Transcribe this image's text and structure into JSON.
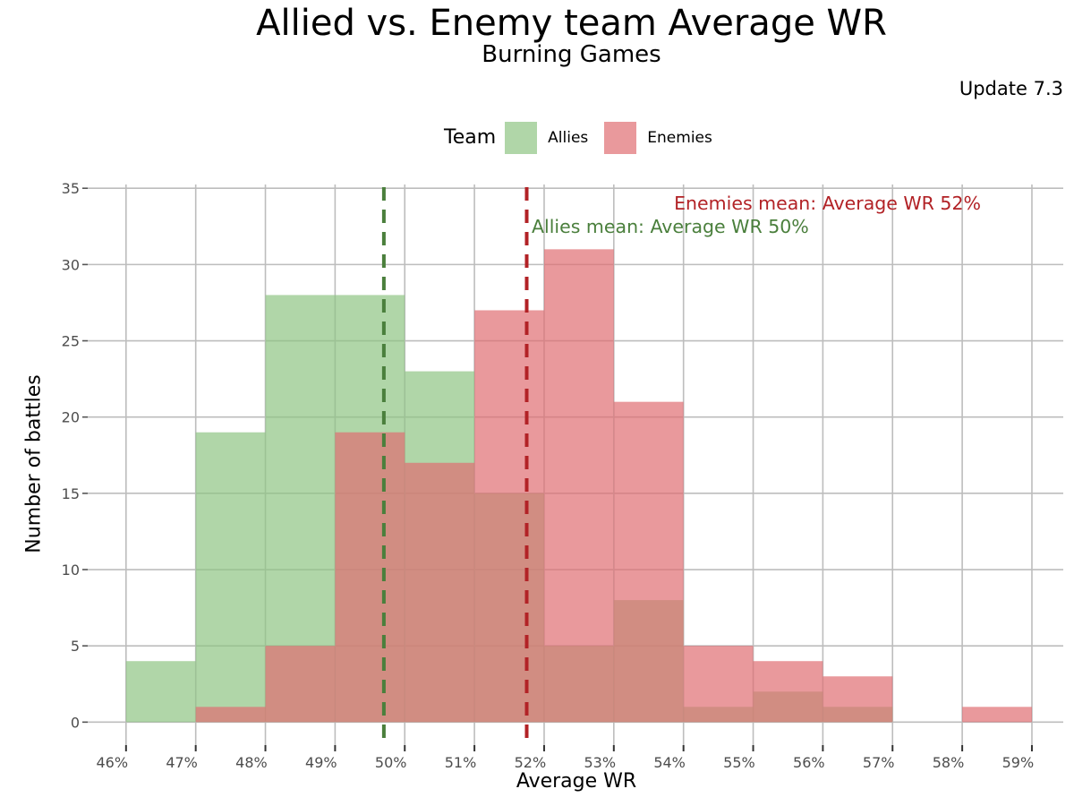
{
  "title": "Allied vs. Enemy team Average WR",
  "subtitle": "Burning Games",
  "caption": "Update 7.3",
  "legend": {
    "title": "Team",
    "items": [
      {
        "label": "Allies",
        "color": "#8fc583"
      },
      {
        "label": "Enemies",
        "color": "#df6e72"
      }
    ]
  },
  "chart_data": {
    "type": "bar",
    "subtype": "overlapping-histogram",
    "title": "Allied vs. Enemy team Average WR",
    "subtitle": "Burning Games",
    "xlabel": "Average WR",
    "ylabel": "Number of battles",
    "xlim": [
      45.65,
      59.65
    ],
    "ylim": [
      -1.8,
      35.6
    ],
    "x_ticks": [
      "46%",
      "47%",
      "48%",
      "49%",
      "50%",
      "51%",
      "52%",
      "53%",
      "54%",
      "55%",
      "56%",
      "57%",
      "58%",
      "59%"
    ],
    "y_ticks": [
      0,
      5,
      10,
      15,
      20,
      25,
      30,
      35
    ],
    "bin_edges": [
      46.2,
      47.2,
      48.2,
      49.2,
      50.2,
      51.2,
      52.2,
      53.2,
      54.2,
      55.2,
      56.2,
      57.2,
      58.2,
      59.2
    ],
    "series": [
      {
        "name": "Allies",
        "color": "#8fc583",
        "values": [
          4,
          19,
          28,
          28,
          23,
          15,
          5,
          8,
          1,
          2,
          1,
          0,
          0
        ]
      },
      {
        "name": "Enemies",
        "color": "#df6e72",
        "values": [
          0,
          1,
          5,
          19,
          17,
          27,
          31,
          21,
          5,
          4,
          3,
          0,
          1
        ]
      }
    ],
    "mean_lines": [
      {
        "series": "Allies",
        "x": 49.9,
        "color": "#4a7f3c",
        "label": "Allies mean: Average WR 50%"
      },
      {
        "series": "Enemies",
        "x": 51.95,
        "color": "#b22226",
        "label": "Enemies mean: Average WR 52%"
      }
    ],
    "grid": true,
    "legend_position": "top"
  }
}
